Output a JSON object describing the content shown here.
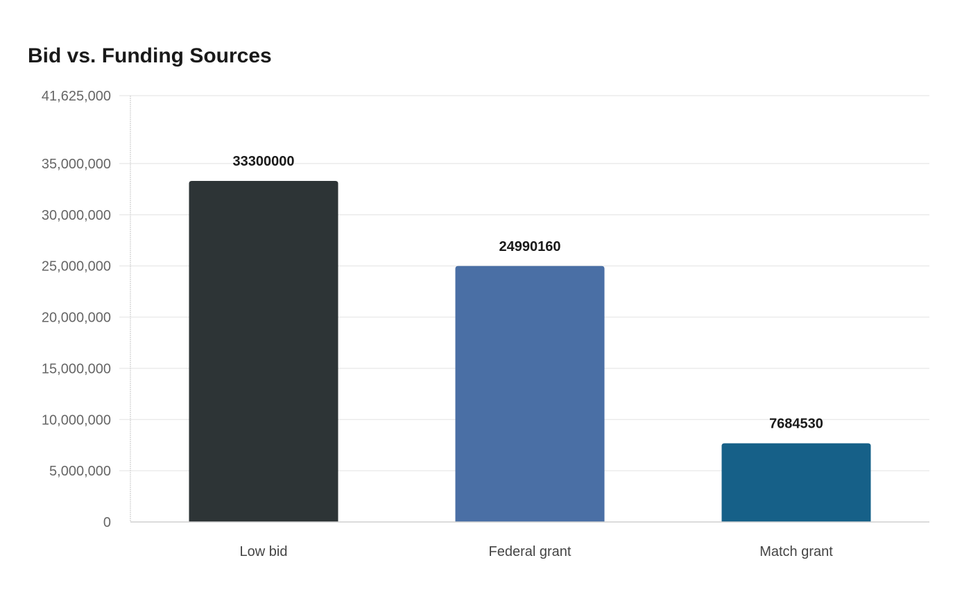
{
  "chart_data": {
    "type": "bar",
    "title": "Bid vs. Funding Sources",
    "categories": [
      "Low bid",
      "Federal grant",
      "Match grant"
    ],
    "values": [
      33300000,
      24990160,
      7684530
    ],
    "data_labels": [
      "33300000",
      "24990160",
      "7684530"
    ],
    "colors": [
      "#2d3436",
      "#4a6fa5",
      "#166088"
    ],
    "ylim": [
      0,
      41625000
    ],
    "yticks": [
      0,
      5000000,
      10000000,
      15000000,
      20000000,
      25000000,
      30000000,
      35000000,
      41625000
    ],
    "ytick_labels": [
      "0",
      "5,000,000",
      "10,000,000",
      "15,000,000",
      "20,000,000",
      "25,000,000",
      "30,000,000",
      "35,000,000",
      "41,625,000"
    ],
    "xlabel": "",
    "ylabel": "",
    "grid": true,
    "legend": "none"
  }
}
